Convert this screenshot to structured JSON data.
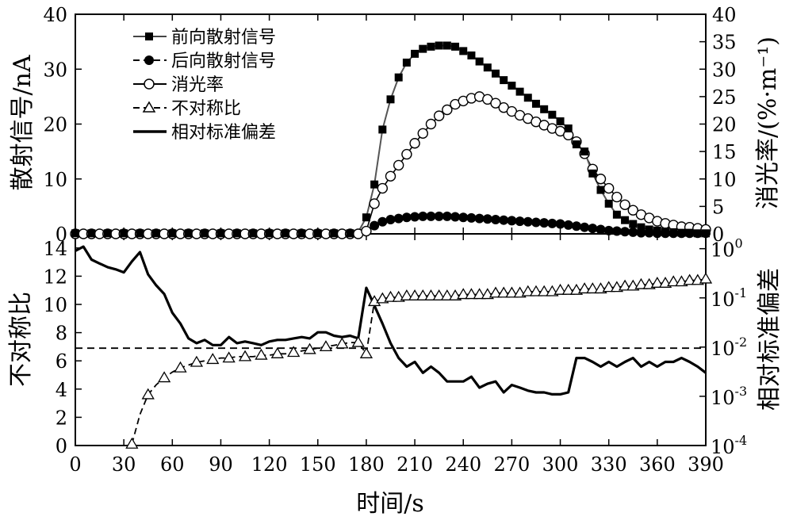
{
  "chart_data": [
    {
      "panel": "top",
      "type": "line",
      "x_ticks": [
        "0",
        "30",
        "60",
        "90",
        "120",
        "150",
        "180",
        "210",
        "240",
        "270",
        "300",
        "330",
        "360",
        "390"
      ],
      "y_left_label": "散射信号/nA",
      "y_left_ylim": [
        0,
        40
      ],
      "y_left_ticks": [
        "0",
        "10",
        "20",
        "30",
        "40"
      ],
      "y_right_label": "消光率/(%·m⁻¹)",
      "y_right_ylim": [
        0,
        40
      ],
      "y_right_ticks": [
        "0",
        "5",
        "10",
        "15",
        "20",
        "25",
        "30",
        "35",
        "40"
      ],
      "legend_position": "top-left",
      "legend": [
        {
          "label": "前向散射信号",
          "marker": "filled-square",
          "line": "solid"
        },
        {
          "label": "后向散射信号",
          "marker": "filled-circle",
          "line": "dashed"
        },
        {
          "label": "消光率",
          "marker": "open-circle",
          "line": "solid"
        },
        {
          "label": "不对称比",
          "marker": "open-triangle",
          "line": "dashed"
        },
        {
          "label": "相对标准偏差",
          "marker": "none",
          "line": "thick-solid"
        }
      ],
      "series": [
        {
          "name": "前向散射信号",
          "axis": "left",
          "x": [
            0,
            5,
            10,
            15,
            20,
            25,
            30,
            35,
            40,
            45,
            50,
            55,
            60,
            65,
            70,
            75,
            80,
            85,
            90,
            95,
            100,
            105,
            110,
            115,
            120,
            125,
            130,
            135,
            140,
            145,
            150,
            155,
            160,
            165,
            170,
            175,
            180,
            185,
            190,
            195,
            200,
            205,
            210,
            215,
            220,
            225,
            230,
            235,
            240,
            245,
            250,
            255,
            260,
            265,
            270,
            275,
            280,
            285,
            290,
            295,
            300,
            305,
            310,
            315,
            320,
            325,
            330,
            335,
            340,
            345,
            350,
            355,
            360,
            365,
            370,
            375,
            380,
            385,
            390
          ],
          "y": [
            0.1,
            0.1,
            0.1,
            0.1,
            0.1,
            0.1,
            0.1,
            0.1,
            0.1,
            0.1,
            0.1,
            0.1,
            0.1,
            0.1,
            0.1,
            0.1,
            0.1,
            0.1,
            0.1,
            0.1,
            0.1,
            0.1,
            0.1,
            0.1,
            0.1,
            0.1,
            0.1,
            0.1,
            0.1,
            0.1,
            0.1,
            0.1,
            0.1,
            0.1,
            0.1,
            0.3,
            3.0,
            9.0,
            19.0,
            24.5,
            28.5,
            31.2,
            32.8,
            33.7,
            34.1,
            34.3,
            34.3,
            34.1,
            33.3,
            32.5,
            31.4,
            30.3,
            29.2,
            28.0,
            27.0,
            25.9,
            24.8,
            23.7,
            22.7,
            21.7,
            20.5,
            19.2,
            16.3,
            15.0,
            11.0,
            8.0,
            5.5,
            3.5,
            2.5,
            1.8,
            1.2,
            0.8,
            0.6,
            0.4,
            0.3,
            0.2,
            0.2,
            0.1,
            0.1
          ]
        },
        {
          "name": "后向散射信号",
          "axis": "left",
          "x": [
            0,
            5,
            10,
            15,
            20,
            25,
            30,
            35,
            40,
            45,
            50,
            55,
            60,
            65,
            70,
            75,
            80,
            85,
            90,
            95,
            100,
            105,
            110,
            115,
            120,
            125,
            130,
            135,
            140,
            145,
            150,
            155,
            160,
            165,
            170,
            175,
            180,
            185,
            190,
            195,
            200,
            205,
            210,
            215,
            220,
            225,
            230,
            235,
            240,
            245,
            250,
            255,
            260,
            265,
            270,
            275,
            280,
            285,
            290,
            295,
            300,
            305,
            310,
            315,
            320,
            325,
            330,
            335,
            340,
            345,
            350,
            355,
            360,
            365,
            370,
            375,
            380,
            385,
            390
          ],
          "y": [
            0,
            0,
            0,
            0,
            0,
            0,
            0,
            0,
            0,
            0,
            0,
            0,
            0,
            0,
            0,
            0,
            0,
            0,
            0,
            0,
            0,
            0,
            0,
            0,
            0,
            0,
            0,
            0,
            0,
            0,
            0,
            0,
            0,
            0,
            0,
            0,
            0.4,
            1.5,
            2.2,
            2.6,
            2.8,
            3.0,
            3.1,
            3.2,
            3.2,
            3.2,
            3.2,
            3.1,
            3.0,
            2.9,
            2.8,
            2.7,
            2.6,
            2.5,
            2.4,
            2.3,
            2.2,
            2.1,
            2.0,
            1.9,
            1.8,
            1.6,
            1.4,
            1.2,
            1.0,
            0.8,
            0.6,
            0.5,
            0.4,
            0.3,
            0.2,
            0.2,
            0.1,
            0.1,
            0.1,
            0.1,
            0.1,
            0.1,
            0.1
          ]
        },
        {
          "name": "消光率",
          "axis": "right",
          "x": [
            0,
            5,
            10,
            15,
            20,
            25,
            30,
            35,
            40,
            45,
            50,
            55,
            60,
            65,
            70,
            75,
            80,
            85,
            90,
            95,
            100,
            105,
            110,
            115,
            120,
            125,
            130,
            135,
            140,
            145,
            150,
            155,
            160,
            165,
            170,
            175,
            180,
            185,
            190,
            195,
            200,
            205,
            210,
            215,
            220,
            225,
            230,
            235,
            240,
            245,
            250,
            255,
            260,
            265,
            270,
            275,
            280,
            285,
            290,
            295,
            300,
            305,
            310,
            315,
            320,
            325,
            330,
            335,
            340,
            345,
            350,
            355,
            360,
            365,
            370,
            375,
            380,
            385,
            390
          ],
          "y": [
            0,
            0,
            0,
            0,
            0,
            0,
            0,
            0,
            0,
            0,
            0,
            0,
            0,
            0,
            0,
            0,
            0,
            0,
            0,
            0,
            0,
            0,
            0,
            0,
            0,
            0,
            0,
            0,
            0,
            0,
            0,
            0,
            0,
            0,
            0,
            0,
            0.5,
            5.5,
            8.3,
            10.5,
            12.5,
            14.5,
            16.5,
            18.3,
            20.0,
            21.5,
            22.6,
            23.6,
            24.2,
            24.7,
            25.0,
            24.5,
            23.8,
            23.0,
            22.3,
            21.6,
            21.0,
            20.4,
            19.8,
            19.2,
            18.7,
            18.0,
            16.8,
            14.6,
            11.8,
            10.0,
            8.3,
            6.7,
            5.3,
            4.3,
            3.5,
            2.9,
            2.3,
            1.9,
            1.6,
            1.3,
            1.2,
            1.0,
            0.8
          ]
        },
        {
          "name": "不对称比",
          "axis": "left-bottom",
          "x": [
            35,
            40,
            45,
            50,
            55,
            60,
            65,
            70,
            75,
            80,
            85,
            90,
            95,
            100,
            105,
            110,
            115,
            120,
            125,
            130,
            135,
            140,
            145,
            150,
            155,
            160,
            165,
            170,
            175,
            180,
            185,
            190,
            195,
            200,
            205,
            210,
            215,
            220,
            225,
            230,
            235,
            240,
            245,
            250,
            255,
            260,
            265,
            270,
            275,
            280,
            285,
            290,
            295,
            300,
            305,
            310,
            315,
            320,
            325,
            330,
            335,
            340,
            345,
            350,
            355,
            360,
            365,
            370,
            375,
            380,
            385,
            390
          ],
          "y": [
            0.1,
            2.2,
            3.6,
            4.3,
            4.8,
            5.2,
            5.5,
            5.7,
            5.9,
            6.0,
            6.1,
            6.2,
            6.2,
            6.3,
            6.3,
            6.3,
            6.4,
            6.4,
            6.5,
            6.5,
            6.6,
            6.7,
            6.8,
            6.9,
            7.0,
            7.1,
            7.2,
            7.3,
            7.3,
            6.5,
            10.2,
            10.4,
            10.5,
            10.5,
            10.6,
            10.6,
            10.6,
            10.6,
            10.6,
            10.6,
            10.6,
            10.7,
            10.7,
            10.7,
            10.7,
            10.8,
            10.8,
            10.8,
            10.8,
            10.9,
            10.9,
            10.9,
            10.9,
            11.0,
            11.0,
            11.0,
            11.1,
            11.1,
            11.1,
            11.2,
            11.2,
            11.3,
            11.3,
            11.4,
            11.4,
            11.5,
            11.5,
            11.6,
            11.6,
            11.7,
            11.7,
            11.8
          ]
        },
        {
          "name": "相对标准偏差",
          "axis": "right-bottom-log",
          "x": [
            0,
            5,
            10,
            15,
            20,
            25,
            30,
            35,
            40,
            45,
            50,
            55,
            60,
            65,
            70,
            75,
            80,
            85,
            90,
            95,
            100,
            105,
            110,
            115,
            120,
            125,
            130,
            135,
            140,
            145,
            150,
            155,
            160,
            165,
            170,
            175,
            180,
            185,
            190,
            195,
            200,
            205,
            210,
            215,
            220,
            225,
            230,
            235,
            240,
            245,
            250,
            255,
            260,
            265,
            270,
            275,
            280,
            285,
            290,
            295,
            300,
            305,
            310,
            315,
            320,
            325,
            330,
            335,
            340,
            345,
            350,
            355,
            360,
            365,
            370,
            375,
            380,
            385,
            390
          ],
          "y": [
            0.9,
            1.1,
            0.6,
            0.5,
            0.42,
            0.38,
            0.33,
            0.55,
            0.85,
            0.3,
            0.18,
            0.12,
            0.05,
            0.03,
            0.015,
            0.012,
            0.014,
            0.011,
            0.011,
            0.016,
            0.012,
            0.013,
            0.012,
            0.011,
            0.013,
            0.014,
            0.014,
            0.015,
            0.016,
            0.015,
            0.02,
            0.02,
            0.017,
            0.016,
            0.017,
            0.015,
            0.16,
            0.07,
            0.03,
            0.012,
            0.006,
            0.004,
            0.005,
            0.003,
            0.004,
            0.003,
            0.002,
            0.002,
            0.002,
            0.0025,
            0.0015,
            0.0018,
            0.002,
            0.0012,
            0.0017,
            0.0015,
            0.0013,
            0.0012,
            0.0012,
            0.0011,
            0.0011,
            0.0012,
            0.006,
            0.006,
            0.005,
            0.004,
            0.005,
            0.004,
            0.005,
            0.006,
            0.004,
            0.005,
            0.004,
            0.005,
            0.005,
            0.006,
            0.005,
            0.004,
            0.003
          ]
        },
        {
          "name": "dashed-reference",
          "axis": "left-bottom",
          "x": [
            0,
            390
          ],
          "y": [
            6.9,
            6.9
          ]
        }
      ]
    },
    {
      "panel": "bottom",
      "type": "line",
      "xlabel": "时间/s",
      "xlim": [
        0,
        390
      ],
      "x_ticks": [
        "0",
        "30",
        "60",
        "90",
        "120",
        "150",
        "180",
        "210",
        "240",
        "270",
        "300",
        "330",
        "360",
        "390"
      ],
      "y_left_label": "不对称比",
      "y_left_ylim": [
        0,
        15
      ],
      "y_left_ticks": [
        "0",
        "2",
        "4",
        "6",
        "8",
        "10",
        "12",
        "14"
      ],
      "y_right_label": "相对标准偏差",
      "y_right_scale": "log",
      "y_right_ylim": [
        0.0001,
        2
      ],
      "y_right_ticks": [
        {
          "base": "10",
          "exp": "-4"
        },
        {
          "base": "10",
          "exp": "-3"
        },
        {
          "base": "10",
          "exp": "-2"
        },
        {
          "base": "10",
          "exp": "-1"
        },
        {
          "base": "10",
          "exp": "0"
        }
      ]
    }
  ]
}
